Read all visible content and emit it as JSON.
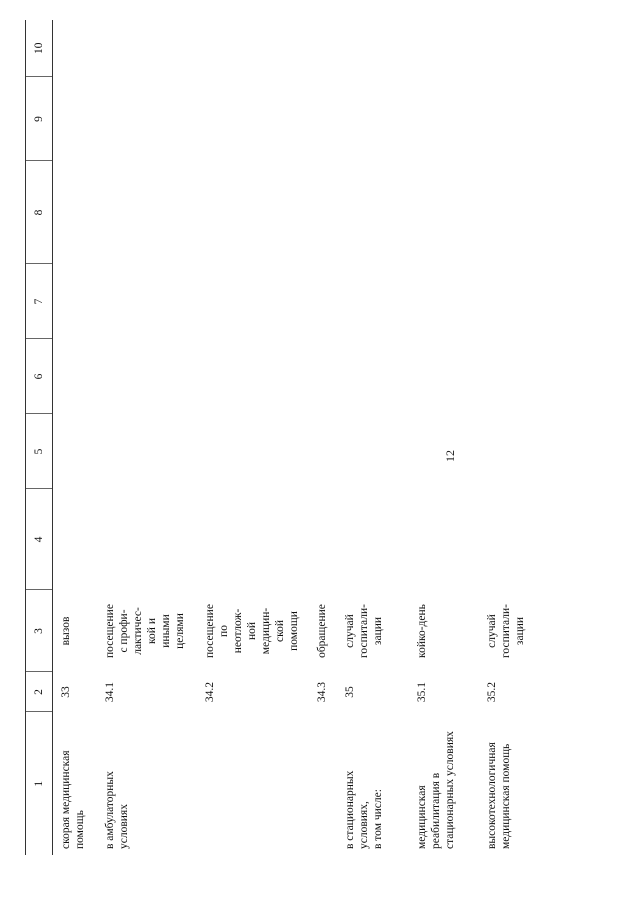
{
  "page_number": "12",
  "table": {
    "columns": [
      "1",
      "2",
      "3",
      "4",
      "5",
      "6",
      "7",
      "8",
      "9",
      "10"
    ],
    "rows": [
      {
        "name": "скорая медицинская\nпомощь",
        "code": "33",
        "unit": "вызов"
      },
      {
        "name": "в амбулаторных\nусловиях",
        "code": "34.1",
        "unit": "посещение\nс профи-\nлактичес-\nкой и\nиными\nцелями"
      },
      {
        "name": "",
        "code": "34.2",
        "unit": "посещение\nпо\nнеотлож-\nной\nмедицин-\nской\nпомощи"
      },
      {
        "name": "",
        "code": "34.3",
        "unit": "обращение"
      },
      {
        "name": "в стационарных\nусловиях,\nв том числе:",
        "code": "35",
        "unit": "случай\nгоспитали-\nзации"
      },
      {
        "name": "медицинская\nреабилитация в\nстационарных условиях",
        "code": "35.1",
        "unit": "койко-день"
      },
      {
        "name": "высокотехнологичная\nмедицинская помощь",
        "code": "35.2",
        "unit": "случай\nгоспитали-\nзации"
      }
    ]
  }
}
